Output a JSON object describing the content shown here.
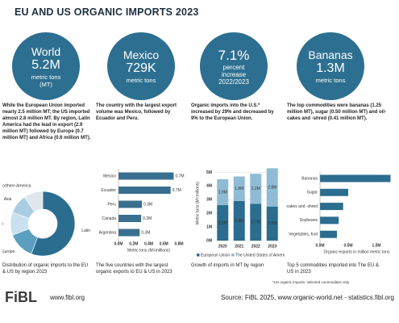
{
  "title": "EU AND US ORGANIC IMPORTS 2023",
  "panels": [
    {
      "label": "World",
      "value": "5.2M",
      "unit": "metric tons (MT)",
      "text": "While the European Union imported nearly 2.5 million MT; the US imported almost 2.8 million MT. By region, Latin America had the lead in export (2.9 million MT) followed by Europe (0.7 million MT) and Africa (0.6 million MT).",
      "caption": "Distribution of organic imports to the EU & US by region 2023"
    },
    {
      "label": "Mexico",
      "value": "729K",
      "unit": "metric tons",
      "text": "The country with the largest export volume was Mexico, followed by Ecuador and Peru.",
      "caption": "The five countries with the largest organic exports to EU & US in 2023"
    },
    {
      "label": "7.1%",
      "value": "percent increase 2022/2023",
      "unit": "",
      "text": "Organic imports into the U.S.* increased by 29% and decreased by 9% to the European Union.",
      "caption": "Growth of imports in MT by region"
    },
    {
      "label": "Bananas",
      "value": "1.3M",
      "unit": "metric tons",
      "text": "The top commodities were bananas (1.25 million MT), sugar (0.50 million MT)  and oil-cakes and -shred (0.41 million MT).",
      "caption": "Top 5 commodities imported into The EU & US in 2023"
    }
  ],
  "footnote": "*US organic imports: selected commodities only",
  "footer": {
    "logo": "FiBL",
    "url": "www.fibl.org",
    "source": "Source: FiBL 2025, www.organic-world.net - statistics.fibl.org"
  },
  "chart_data": [
    {
      "type": "pie",
      "donut": true,
      "categories": [
        "Latin America",
        "Europe",
        "Africa",
        "Asia",
        "Northern America"
      ],
      "values": [
        2.9,
        0.7,
        0.6,
        0.5,
        0.5
      ],
      "colors": [
        "#2b6d8f",
        "#5b9ec0",
        "#c9e0ee",
        "#a9cde3",
        "#dfe6ec"
      ]
    },
    {
      "type": "bar",
      "orientation": "horizontal",
      "categories": [
        "Mexico",
        "Ecuador",
        "Peru",
        "Canada",
        "Argentina"
      ],
      "values": [
        0.73,
        0.69,
        0.31,
        0.3,
        0.28
      ],
      "value_labels": [
        "0.7M",
        "0.7M",
        "0.3M",
        "0.3M",
        "0.3M"
      ],
      "color": "#3a6f8f",
      "xlim": [
        0,
        0.8
      ],
      "xticks": [
        {
          "value": 0,
          "label": "0.0M"
        },
        {
          "value": 0.2,
          "label": "0.2M"
        },
        {
          "value": 0.4,
          "label": "0.4M"
        },
        {
          "value": 0.6,
          "label": "0.6M"
        },
        {
          "value": 0.8,
          "label": "0.8M"
        }
      ],
      "xlabel": "Metric tons (M=millions)"
    },
    {
      "type": "bar",
      "stacked": true,
      "categories": [
        "2020",
        "2021",
        "2022",
        "2023"
      ],
      "series": [
        {
          "name": "European Union",
          "color": "#2b6d8f",
          "values": [
            2.6,
            2.9,
            2.7,
            2.5
          ],
          "value_labels": [
            "2.6M",
            "2.9M",
            "2.7M",
            "2.5M"
          ]
        },
        {
          "name": "The United States of America",
          "color": "#8fbcd4",
          "values": [
            1.9,
            1.8,
            2.2,
            2.8
          ],
          "value_labels": [
            "1.9M",
            "1.8M",
            "2.2M",
            "2.8M"
          ]
        }
      ],
      "ylim": [
        0,
        5.5
      ],
      "yticks": [
        {
          "value": 0,
          "label": "0M"
        },
        {
          "value": 1,
          "label": "1M"
        },
        {
          "value": 2,
          "label": "2M"
        },
        {
          "value": 3,
          "label": "3M"
        },
        {
          "value": 4,
          "label": "4M"
        },
        {
          "value": 5,
          "label": "5M"
        }
      ],
      "ylabel": "Metric tons (M=millions)",
      "grid": true,
      "legend": "bottom"
    },
    {
      "type": "bar",
      "orientation": "horizontal",
      "categories": [
        "Bananas",
        "Sugar",
        "Oil-cakes and -shred",
        "Soybeans",
        "Vegetables, fruit"
      ],
      "values": [
        1.25,
        0.5,
        0.41,
        0.33,
        0.3
      ],
      "color": "#2b6d8f",
      "xlim": [
        0,
        1.3
      ],
      "xticks": [
        {
          "value": 0,
          "label": "0.0M"
        },
        {
          "value": 0.5,
          "label": "0.5M"
        },
        {
          "value": 1,
          "label": "1.0M"
        }
      ],
      "xlabel": "Organic exports in million metric tons"
    }
  ]
}
